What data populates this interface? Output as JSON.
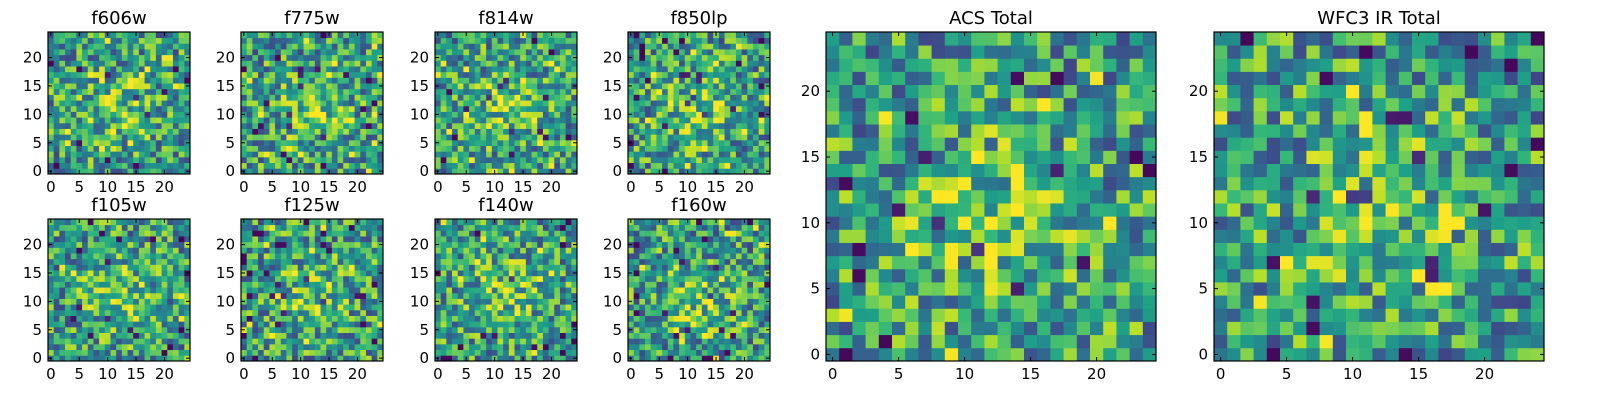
{
  "chart_data": [
    {
      "type": "heatmap",
      "name": "panel-f606w",
      "title": "f606w",
      "xticks": [
        "0",
        "5",
        "10",
        "15",
        "20"
      ],
      "yticks": [
        "0",
        "5",
        "10",
        "15",
        "20"
      ],
      "xlim": [
        -0.5,
        24.5
      ],
      "ylim": [
        -0.5,
        24.5
      ],
      "grid_size": [
        25,
        25
      ],
      "colormap": "viridis",
      "value_range": [
        0,
        1
      ],
      "seed": 11
    },
    {
      "type": "heatmap",
      "name": "panel-f775w",
      "title": "f775w",
      "xticks": [
        "0",
        "5",
        "10",
        "15",
        "20"
      ],
      "yticks": [
        "0",
        "5",
        "10",
        "15",
        "20"
      ],
      "xlim": [
        -0.5,
        24.5
      ],
      "ylim": [
        -0.5,
        24.5
      ],
      "grid_size": [
        25,
        25
      ],
      "colormap": "viridis",
      "value_range": [
        0,
        1
      ],
      "seed": 23
    },
    {
      "type": "heatmap",
      "name": "panel-f814w",
      "title": "f814w",
      "xticks": [
        "0",
        "5",
        "10",
        "15",
        "20"
      ],
      "yticks": [
        "0",
        "5",
        "10",
        "15",
        "20"
      ],
      "xlim": [
        -0.5,
        24.5
      ],
      "ylim": [
        -0.5,
        24.5
      ],
      "grid_size": [
        25,
        25
      ],
      "colormap": "viridis",
      "value_range": [
        0,
        1
      ],
      "seed": 37
    },
    {
      "type": "heatmap",
      "name": "panel-f850lp",
      "title": "f850lp",
      "xticks": [
        "0",
        "5",
        "10",
        "15",
        "20"
      ],
      "yticks": [
        "0",
        "5",
        "10",
        "15",
        "20"
      ],
      "xlim": [
        -0.5,
        24.5
      ],
      "ylim": [
        -0.5,
        24.5
      ],
      "grid_size": [
        25,
        25
      ],
      "colormap": "viridis",
      "value_range": [
        0,
        1
      ],
      "seed": 41
    },
    {
      "type": "heatmap",
      "name": "panel-f105w",
      "title": "f105w",
      "xticks": [
        "0",
        "5",
        "10",
        "15",
        "20"
      ],
      "yticks": [
        "0",
        "5",
        "10",
        "15",
        "20"
      ],
      "xlim": [
        -0.5,
        24.5
      ],
      "ylim": [
        -0.5,
        24.5
      ],
      "grid_size": [
        25,
        25
      ],
      "colormap": "viridis",
      "value_range": [
        0,
        1
      ],
      "seed": 53
    },
    {
      "type": "heatmap",
      "name": "panel-f125w",
      "title": "f125w",
      "xticks": [
        "0",
        "5",
        "10",
        "15",
        "20"
      ],
      "yticks": [
        "0",
        "5",
        "10",
        "15",
        "20"
      ],
      "xlim": [
        -0.5,
        24.5
      ],
      "ylim": [
        -0.5,
        24.5
      ],
      "grid_size": [
        25,
        25
      ],
      "colormap": "viridis",
      "value_range": [
        0,
        1
      ],
      "seed": 67
    },
    {
      "type": "heatmap",
      "name": "panel-f140w",
      "title": "f140w",
      "xticks": [
        "0",
        "5",
        "10",
        "15",
        "20"
      ],
      "yticks": [
        "0",
        "5",
        "10",
        "15",
        "20"
      ],
      "xlim": [
        -0.5,
        24.5
      ],
      "ylim": [
        -0.5,
        24.5
      ],
      "grid_size": [
        25,
        25
      ],
      "colormap": "viridis",
      "value_range": [
        0,
        1
      ],
      "seed": 79
    },
    {
      "type": "heatmap",
      "name": "panel-f160w",
      "title": "f160w",
      "xticks": [
        "0",
        "5",
        "10",
        "15",
        "20"
      ],
      "yticks": [
        "0",
        "5",
        "10",
        "15",
        "20"
      ],
      "xlim": [
        -0.5,
        24.5
      ],
      "ylim": [
        -0.5,
        24.5
      ],
      "grid_size": [
        25,
        25
      ],
      "colormap": "viridis",
      "value_range": [
        0,
        1
      ],
      "seed": 83
    },
    {
      "type": "heatmap",
      "name": "panel-acs-total",
      "title": "ACS Total",
      "xticks": [
        "0",
        "5",
        "10",
        "15",
        "20"
      ],
      "yticks": [
        "0",
        "5",
        "10",
        "15",
        "20"
      ],
      "xlim": [
        -0.5,
        24.5
      ],
      "ylim": [
        -0.5,
        24.5
      ],
      "grid_size": [
        25,
        25
      ],
      "colormap": "viridis",
      "value_range": [
        0,
        1
      ],
      "seed": 97
    },
    {
      "type": "heatmap",
      "name": "panel-wfc3-ir-total",
      "title": "WFC3 IR Total",
      "xticks": [
        "0",
        "5",
        "10",
        "15",
        "20"
      ],
      "yticks": [
        "0",
        "5",
        "10",
        "15",
        "20"
      ],
      "xlim": [
        -0.5,
        24.5
      ],
      "ylim": [
        -0.5,
        24.5
      ],
      "grid_size": [
        25,
        25
      ],
      "colormap": "viridis",
      "value_range": [
        0,
        1
      ],
      "seed": 101
    }
  ]
}
